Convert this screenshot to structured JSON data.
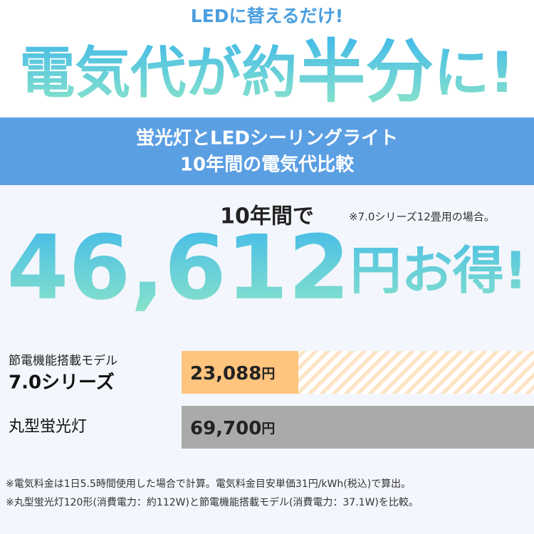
{
  "headline": {
    "lead": "LEDに替えるだけ!",
    "main_a": "電気代が約",
    "main_b": "半分",
    "main_c": "に!"
  },
  "banner": {
    "line1": "蛍光灯とLEDシーリングライト",
    "line2": "10年間の電気代比較"
  },
  "savings": {
    "prefix": "10年間で",
    "note": "※7.0シリーズ12畳用の場合。",
    "amount": "46,612",
    "suffix": "円お得!"
  },
  "chart_data": {
    "type": "bar",
    "orientation": "horizontal",
    "series_note": "節電機能搭載モデル",
    "categories": [
      "7.0シリーズ",
      "丸型蛍光灯"
    ],
    "values": [
      23088,
      69700
    ],
    "value_labels": [
      "23,088",
      "69,700"
    ],
    "unit": "円",
    "colors": [
      "#ffc47e",
      "#aaaaaa"
    ],
    "xlim": [
      0,
      69700
    ]
  },
  "footnotes": [
    "※電気料金は1日5.5時間使用した場合で計算。電気料金目安単価31円/kWh(税込)で算出。",
    "※丸型蛍光灯120形(消費電力：約112W)と節電機能搭載モデル(消費電力：37.1W)を比較。"
  ]
}
